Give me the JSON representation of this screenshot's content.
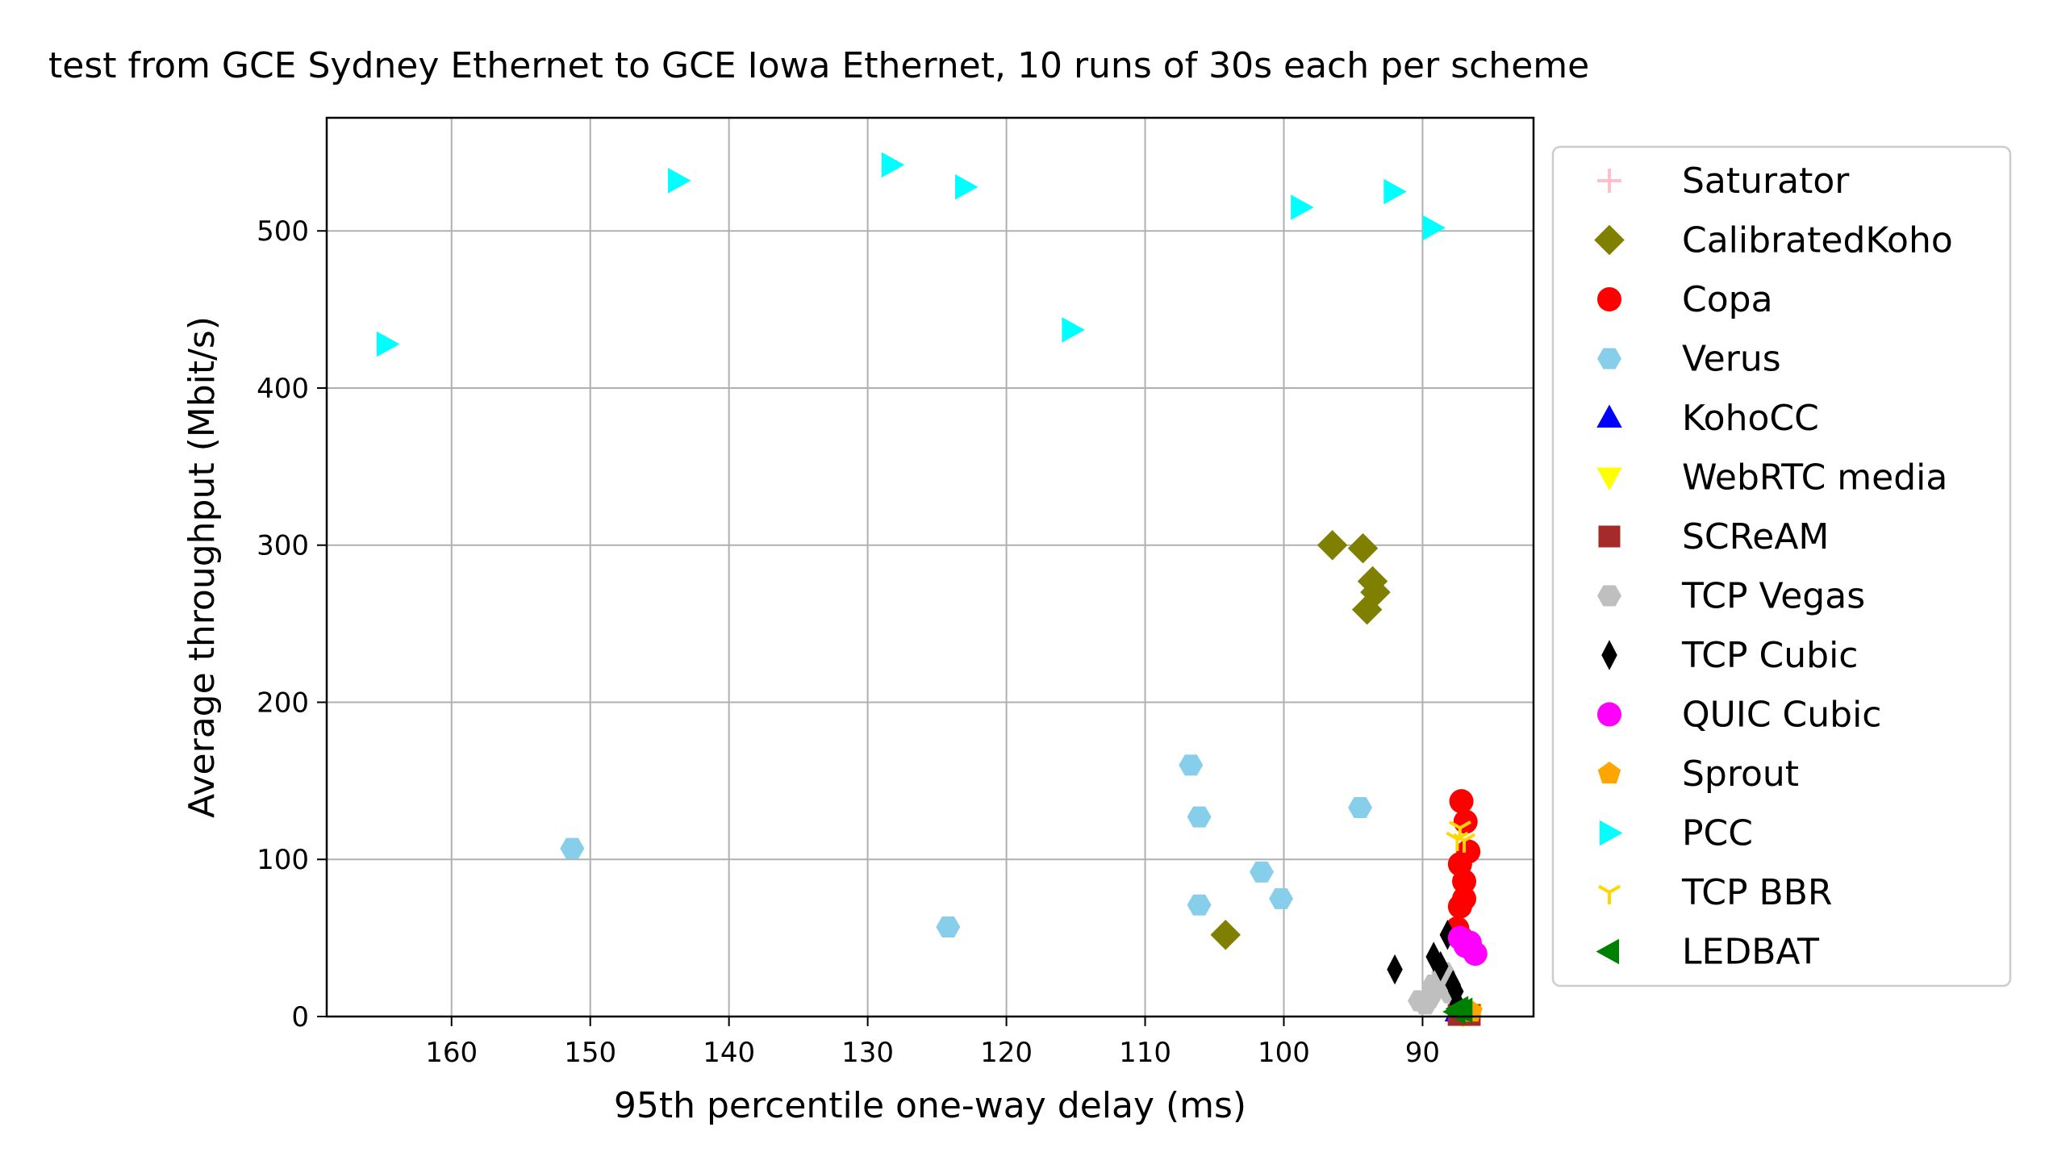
{
  "chart_data": {
    "type": "scatter",
    "title": "test from GCE Sydney Ethernet to GCE Iowa Ethernet, 10 runs of 30s each per scheme",
    "xlabel": "95th percentile one-way delay (ms)",
    "ylabel": "Average throughput (Mbit/s)",
    "x_inverted": true,
    "xlim": [
      169,
      82
    ],
    "ylim": [
      0,
      572
    ],
    "xticks": [
      160,
      150,
      140,
      130,
      120,
      110,
      100,
      90
    ],
    "yticks": [
      0,
      100,
      200,
      300,
      400,
      500
    ],
    "grid": true,
    "legend_position": "outside-right",
    "series": [
      {
        "name": "Saturator",
        "marker": "plus",
        "color": "#ffc0cb",
        "points": [
          [
            87,
            3
          ]
        ]
      },
      {
        "name": "CalibratedKoho",
        "marker": "diamond",
        "color": "#808000",
        "points": [
          [
            96.5,
            300
          ],
          [
            94.3,
            298
          ],
          [
            93.6,
            277
          ],
          [
            93.4,
            270
          ],
          [
            94,
            259
          ],
          [
            104.2,
            52
          ]
        ]
      },
      {
        "name": "Copa",
        "marker": "circle",
        "color": "#ff0000",
        "points": [
          [
            87.2,
            137
          ],
          [
            86.9,
            124
          ],
          [
            86.7,
            105
          ],
          [
            87.3,
            97
          ],
          [
            87,
            86
          ],
          [
            87,
            75
          ],
          [
            87.3,
            70
          ],
          [
            87.5,
            56
          ],
          [
            87.2,
            50
          ]
        ]
      },
      {
        "name": "Verus",
        "marker": "hexagon",
        "color": "#87ceeb",
        "points": [
          [
            151.3,
            107
          ],
          [
            124.2,
            57
          ],
          [
            106.7,
            160
          ],
          [
            106.1,
            127
          ],
          [
            106.1,
            71
          ],
          [
            101.6,
            92
          ],
          [
            100.2,
            75
          ],
          [
            94.5,
            133
          ]
        ]
      },
      {
        "name": "KohoCC",
        "marker": "triangle-up",
        "color": "#0000ff",
        "points": [
          [
            87.5,
            3
          ],
          [
            87.2,
            2
          ]
        ]
      },
      {
        "name": "WebRTC media",
        "marker": "triangle-down",
        "color": "#ffff00",
        "points": [
          [
            86.6,
            2
          ],
          [
            87.1,
            1
          ]
        ]
      },
      {
        "name": "SCReAM",
        "marker": "square",
        "color": "#a52a2a",
        "points": [
          [
            86.6,
            1
          ],
          [
            87.4,
            1
          ]
        ]
      },
      {
        "name": "TCP Vegas",
        "marker": "hexagon",
        "color": "#bfbfbf",
        "points": [
          [
            89.5,
            12
          ],
          [
            90.2,
            10
          ],
          [
            88.5,
            28
          ],
          [
            89.2,
            20
          ],
          [
            88,
            15
          ],
          [
            89.8,
            8
          ]
        ]
      },
      {
        "name": "TCP Cubic",
        "marker": "thin-diamond",
        "color": "#000000",
        "points": [
          [
            92,
            30
          ],
          [
            89.2,
            38
          ],
          [
            88.7,
            32
          ],
          [
            88.2,
            52
          ],
          [
            87.6,
            16
          ],
          [
            87.8,
            20
          ],
          [
            87.5,
            8
          ]
        ]
      },
      {
        "name": "QUIC Cubic",
        "marker": "circle",
        "color": "#ff00ff",
        "points": [
          [
            87.3,
            50
          ],
          [
            86.6,
            47
          ],
          [
            86.2,
            40
          ],
          [
            86.9,
            45
          ]
        ]
      },
      {
        "name": "Sprout",
        "marker": "pentagon",
        "color": "#ffa500",
        "points": [
          [
            86.5,
            3
          ]
        ]
      },
      {
        "name": "PCC",
        "marker": "triangle-right",
        "color": "#00ffff",
        "points": [
          [
            164.7,
            428
          ],
          [
            143.7,
            532
          ],
          [
            128.3,
            542
          ],
          [
            123,
            528
          ],
          [
            115.3,
            437
          ],
          [
            98.8,
            515
          ],
          [
            92.1,
            525
          ],
          [
            89.3,
            502
          ]
        ]
      },
      {
        "name": "TCP BBR",
        "marker": "tri-down",
        "color": "#ffd700",
        "points": [
          [
            87.3,
            120
          ],
          [
            87,
            112
          ],
          [
            87.5,
            113
          ]
        ]
      },
      {
        "name": "LEDBAT",
        "marker": "triangle-left",
        "color": "#008000",
        "points": [
          [
            87.4,
            5
          ],
          [
            87.6,
            3
          ],
          [
            87.1,
            4
          ]
        ]
      }
    ]
  }
}
